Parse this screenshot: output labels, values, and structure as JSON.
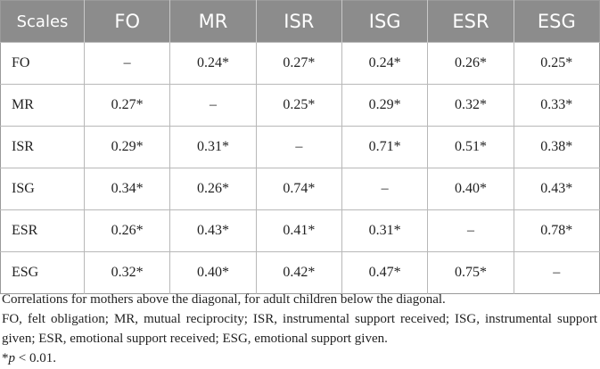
{
  "table": {
    "headers": [
      "Scales",
      "FO",
      "MR",
      "ISR",
      "ISG",
      "ESR",
      "ESG"
    ],
    "rows": [
      {
        "label": "FO",
        "cells": [
          "–",
          "0.24*",
          "0.27*",
          "0.24*",
          "0.26*",
          "0.25*"
        ]
      },
      {
        "label": "MR",
        "cells": [
          "0.27*",
          "–",
          "0.25*",
          "0.29*",
          "0.32*",
          "0.33*"
        ]
      },
      {
        "label": "ISR",
        "cells": [
          "0.29*",
          "0.31*",
          "–",
          "0.71*",
          "0.51*",
          "0.38*"
        ]
      },
      {
        "label": "ISG",
        "cells": [
          "0.34*",
          "0.26*",
          "0.74*",
          "–",
          "0.40*",
          "0.43*"
        ]
      },
      {
        "label": "ESR",
        "cells": [
          "0.26*",
          "0.43*",
          "0.41*",
          "0.31*",
          "–",
          "0.78*"
        ]
      },
      {
        "label": "ESG",
        "cells": [
          "0.32*",
          "0.40*",
          "0.42*",
          "0.47*",
          "0.75*",
          "–"
        ]
      }
    ]
  },
  "notes": {
    "line1": "Correlations for mothers above the diagonal, for adult children below the diagonal.",
    "line2": "FO, felt obligation; MR, mutual reciprocity; ISR, instrumental support received; ISG, instrumental support given; ESR, emotional support received; ESG, emotional support given.",
    "sig_star": "*",
    "sig_symbol": "p",
    "sig_rest": " < 0.01."
  }
}
